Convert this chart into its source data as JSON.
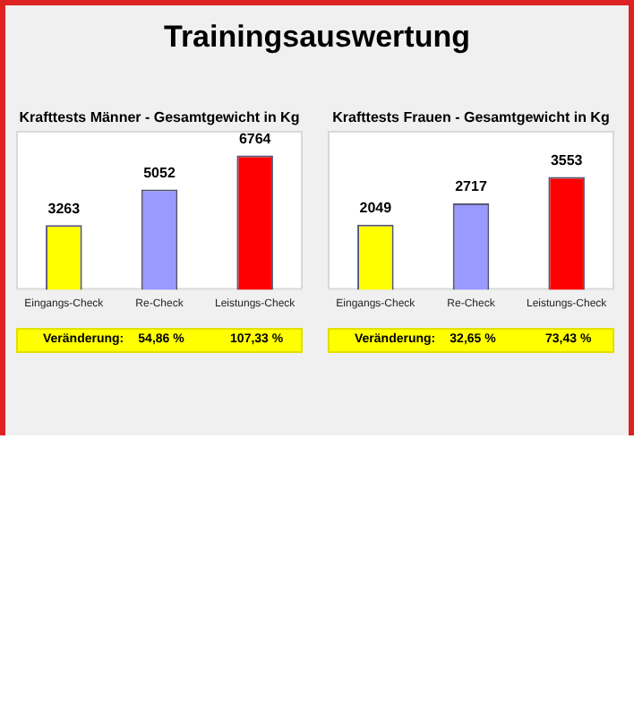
{
  "chart_data": [
    {
      "type": "other",
      "title": "Trainingsauswertung"
    },
    {
      "type": "bar",
      "title": "Krafttests Männer - Gesamtgewicht in Kg",
      "categories": [
        "Eingangs-Check",
        "Re-Check",
        "Leistungs-Check"
      ],
      "values": [
        3263,
        5052,
        6764
      ],
      "colors": [
        "#ffff00",
        "#9999ff",
        "#ff0000"
      ],
      "data_labels": true,
      "legend": false,
      "grid": false,
      "annotations": [
        "Veränderung:",
        "54,86 %",
        "107,33 %"
      ]
    },
    {
      "type": "bar",
      "title": "Krafttests Frauen - Gesamtgewicht in Kg",
      "categories": [
        "Eingangs-Check",
        "Re-Check",
        "Leistungs-Check"
      ],
      "values": [
        2049,
        2717,
        3553
      ],
      "colors": [
        "#ffff00",
        "#9999ff",
        "#ff0000"
      ],
      "data_labels": true,
      "legend": false,
      "grid": false,
      "annotations": [
        "Veränderung:",
        "32,65 %",
        "73,43 %"
      ]
    }
  ]
}
